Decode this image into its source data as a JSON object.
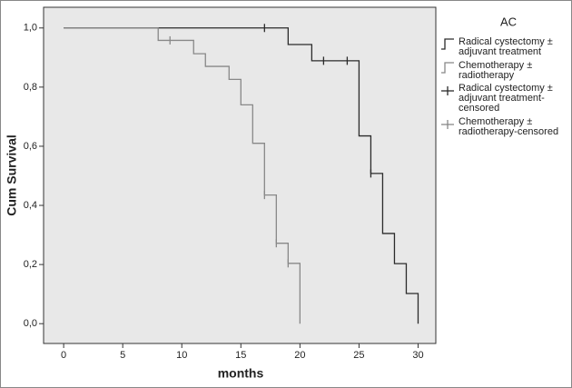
{
  "chart_data": {
    "type": "step",
    "x_label": "months",
    "y_label": "Cum Survival",
    "legend_title": "AC",
    "xlim": [
      -1.7,
      31.5
    ],
    "ylim": [
      -0.067,
      1.07
    ],
    "xticks": [
      0,
      5,
      10,
      15,
      20,
      25,
      30
    ],
    "yticks": [
      {
        "value": 0,
        "label": "0,0"
      },
      {
        "value": 0.2,
        "label": "0,2"
      },
      {
        "value": 0.4,
        "label": "0,4"
      },
      {
        "value": 0.6,
        "label": "0,6"
      },
      {
        "value": 0.8,
        "label": "0,8"
      },
      {
        "value": 1,
        "label": "1,0"
      }
    ],
    "background": "#e8e8e8",
    "series": [
      {
        "name": "Radical cystectomy ± adjuvant treatment",
        "style": "step",
        "color": "#2b2b2b",
        "x": [
          0,
          19,
          21,
          25,
          26,
          27,
          28,
          29,
          30
        ],
        "values": [
          1,
          0.944,
          0.889,
          0.635,
          0.508,
          0.305,
          0.203,
          0.102,
          0
        ]
      },
      {
        "name": "Chemotherapy ± radiotherapy",
        "style": "step",
        "color": "#888888",
        "x": [
          0,
          8,
          11,
          12,
          14,
          15,
          16,
          17,
          18,
          19,
          20
        ],
        "values": [
          1,
          0.958,
          0.913,
          0.87,
          0.826,
          0.74,
          0.61,
          0.435,
          0.272,
          0.204,
          0
        ]
      },
      {
        "name": "Radical cystectomy ± adjuvant treatment-censored",
        "style": "censor",
        "color": "#2b2b2b",
        "x": [
          17,
          22,
          24,
          26
        ],
        "values": [
          1,
          0.889,
          0.889,
          0.508
        ]
      },
      {
        "name": "Chemotherapy ± radiotherapy-censored",
        "style": "censor",
        "color": "#888888",
        "x": [
          9,
          17,
          18,
          19
        ],
        "values": [
          0.958,
          0.435,
          0.272,
          0.204
        ]
      }
    ]
  }
}
